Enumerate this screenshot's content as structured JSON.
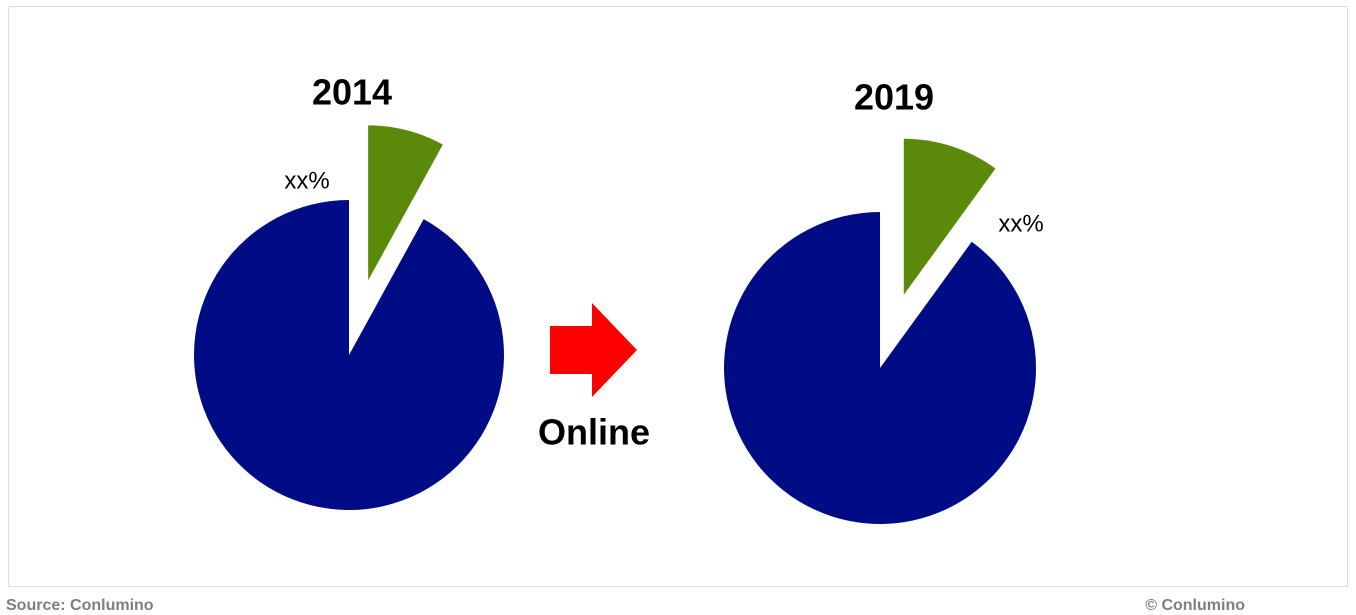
{
  "chart_data": [
    {
      "type": "pie",
      "title": "2014",
      "values": [
        8,
        92
      ],
      "value_labels": [
        "xx%",
        null
      ],
      "colors": [
        "#5b8a0a",
        "#000c85"
      ]
    },
    {
      "type": "pie",
      "title": "2019",
      "values": [
        10,
        90
      ],
      "value_labels": [
        "xx%",
        null
      ],
      "colors": [
        "#5b8a0a",
        "#000c85"
      ]
    }
  ],
  "annotation": "Online",
  "source": "Source: Conlumino",
  "copyright": "© Conlumino"
}
